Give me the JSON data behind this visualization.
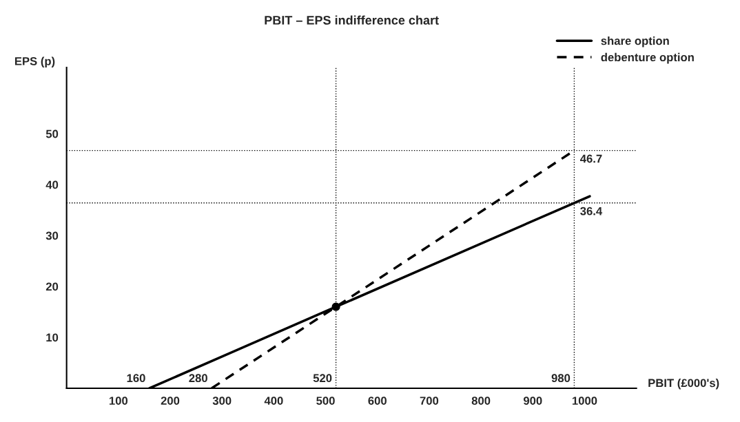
{
  "chart_data": {
    "type": "line",
    "title": "PBIT – EPS indifference chart",
    "xlabel": "PBIT (£000's)",
    "ylabel": "EPS (p)",
    "xlim": [
      0,
      1100
    ],
    "ylim": [
      0,
      63
    ],
    "xticks": [
      100,
      200,
      300,
      400,
      500,
      600,
      700,
      800,
      900,
      1000
    ],
    "yticks": [
      10,
      20,
      30,
      40,
      50
    ],
    "series": [
      {
        "name": "share option",
        "color": "#000000",
        "line_style": "solid",
        "x": [
          160,
          520,
          980,
          1010
        ],
        "values": [
          0,
          16,
          36.4,
          37.7
        ]
      },
      {
        "name": "debenture option",
        "color": "#000000",
        "line_style": "dashed",
        "x": [
          280,
          520,
          980
        ],
        "values": [
          0,
          16,
          46.7
        ]
      },
      {
        "type": "scatter",
        "color": "#000000",
        "marker": "circle",
        "x": [
          520
        ],
        "values": [
          16
        ]
      }
    ],
    "ref_lines": [
      {
        "axis": "y",
        "value": 46.7,
        "line_style": "dotted",
        "color": "#000000"
      },
      {
        "axis": "y",
        "value": 36.4,
        "line_style": "dotted",
        "color": "#000000"
      },
      {
        "axis": "x",
        "value": 520,
        "line_style": "dotted",
        "color": "#000000"
      },
      {
        "axis": "x",
        "value": 980,
        "line_style": "dotted",
        "color": "#000000"
      }
    ],
    "annotations": [
      {
        "text": "160",
        "x": 160,
        "y": 0
      },
      {
        "text": "280",
        "x": 280,
        "y": 0
      },
      {
        "text": "520",
        "x": 520,
        "y": 0
      },
      {
        "text": "980",
        "x": 980,
        "y": 0
      },
      {
        "text": "46.7",
        "x": 980,
        "y": 46.7
      },
      {
        "text": "36.4",
        "x": 980,
        "y": 36.4
      }
    ],
    "grid": false,
    "legend": "top right"
  }
}
